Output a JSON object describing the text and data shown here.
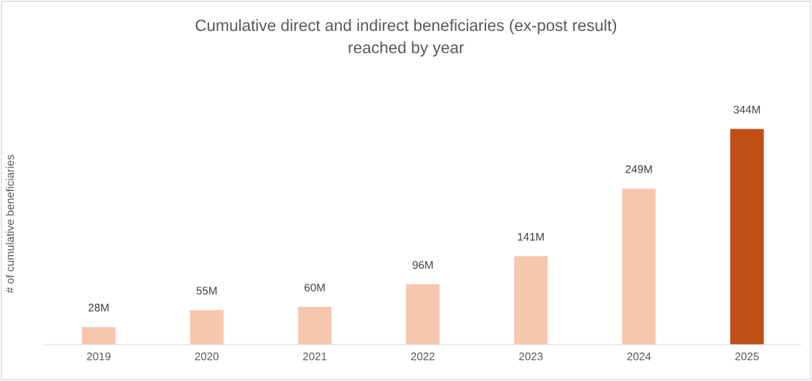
{
  "chart_data": {
    "type": "bar",
    "title": "Cumulative direct and indirect beneficiaries (ex-post result)\nreached by year",
    "ylabel": "# of cumulative beneficiaries",
    "categories": [
      "2019",
      "2020",
      "2021",
      "2022",
      "2023",
      "2024",
      "2025"
    ],
    "values": [
      28,
      55,
      60,
      96,
      141,
      249,
      344
    ],
    "value_labels": [
      "28M",
      "55M",
      "60M",
      "96M",
      "141M",
      "249M",
      "344M"
    ],
    "colors": [
      "#f6c6ad",
      "#f6c6ad",
      "#f6c6ad",
      "#f6c6ad",
      "#f6c6ad",
      "#f6c6ad",
      "#c04f15"
    ],
    "grid": false,
    "legend": false
  }
}
